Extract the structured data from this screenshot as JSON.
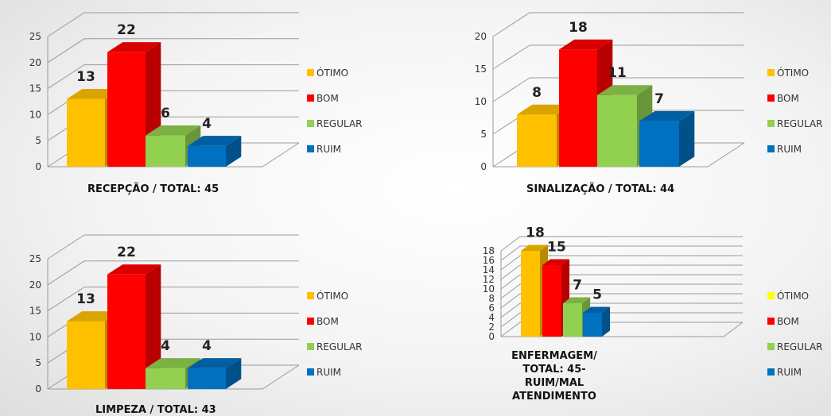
{
  "colors": {
    "otimo": "#ffc000",
    "bom": "#ff0000",
    "regular": "#92d050",
    "ruim": "#0070c0",
    "otimo_legend_enfermagem": "#ffff00"
  },
  "chart_data": [
    {
      "type": "bar",
      "title": "RECEPÇÃO / TOTAL:  45",
      "categories": [
        "ÓTIMO",
        "BOM",
        "REGULAR",
        "RUIM"
      ],
      "values": [
        13,
        22,
        6,
        4
      ],
      "ylim": [
        0,
        25
      ],
      "yticks": [
        "0",
        "5",
        "10",
        "15",
        "20",
        "25"
      ],
      "legend": [
        "ÓTIMO",
        "BOM",
        "REGULAR",
        "RUIM"
      ],
      "legend_position": "right",
      "grid": true
    },
    {
      "type": "bar",
      "title": "SINALIZAÇÃO / TOTAL: 44",
      "categories": [
        "ÓTIMO",
        "BOM",
        "REGULAR",
        "RUIM"
      ],
      "values": [
        8,
        18,
        11,
        7
      ],
      "ylim": [
        0,
        20
      ],
      "yticks": [
        "0",
        "5",
        "10",
        "15",
        "20"
      ],
      "legend": [
        "ÓTIMO",
        "BOM",
        "REGULAR",
        "RUIM"
      ],
      "legend_position": "right",
      "grid": true
    },
    {
      "type": "bar",
      "title": "LIMPEZA / TOTAL: 43",
      "categories": [
        "ÓTIMO",
        "BOM",
        "REGULAR",
        "RUIM"
      ],
      "values": [
        13,
        22,
        4,
        4
      ],
      "ylim": [
        0,
        25
      ],
      "yticks": [
        "0",
        "5",
        "10",
        "15",
        "20",
        "25"
      ],
      "legend": [
        "ÓTIMO",
        "BOM",
        "REGULAR",
        "RUIM"
      ],
      "legend_position": "right",
      "grid": true
    },
    {
      "type": "bar",
      "title_lines": [
        "ENFERMAGEM/",
        "TOTAL: 45-",
        "RUIM/MAL",
        "ATENDIMENTO"
      ],
      "categories": [
        "ÓTIMO",
        "BOM",
        "REGULAR",
        "RUIM"
      ],
      "values": [
        18,
        15,
        7,
        5
      ],
      "ylim": [
        0,
        18
      ],
      "yticks": [
        "0",
        "2",
        "4",
        "6",
        "8",
        "10",
        "12",
        "14",
        "16",
        "18"
      ],
      "legend": [
        "ÓTIMO",
        "BOM",
        "REGULAR",
        "RUIM"
      ],
      "legend_position": "right",
      "grid": true
    }
  ]
}
